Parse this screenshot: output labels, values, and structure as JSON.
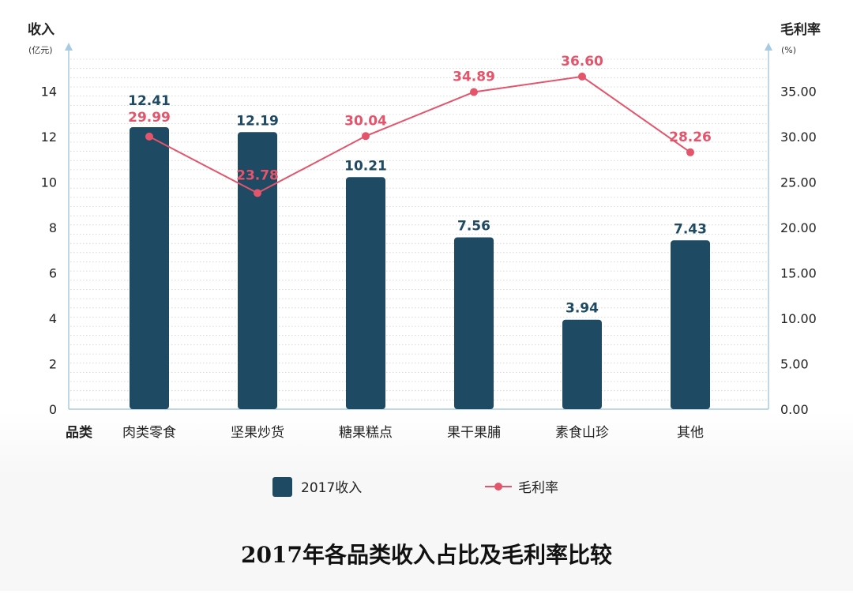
{
  "chart_data": {
    "type": "bar",
    "title": "2017年各品类收入占比及毛利率比较",
    "categories": [
      "肉类零食",
      "坚果炒货",
      "糖果糕点",
      "果干果脯",
      "素食山珍",
      "其他"
    ],
    "category_axis_label": "品类",
    "series": [
      {
        "name": "2017收入",
        "type": "bar",
        "axis": "left",
        "color": "#1e4a63",
        "values": [
          12.41,
          12.19,
          10.21,
          7.56,
          3.94,
          7.43
        ],
        "labels": [
          "12.41",
          "12.19",
          "10.21",
          "7.56",
          "3.94",
          "7.43"
        ]
      },
      {
        "name": "毛利率",
        "type": "line",
        "axis": "right",
        "color": "#e4546b",
        "values": [
          29.99,
          23.78,
          30.04,
          34.89,
          36.6,
          28.26
        ],
        "labels": [
          "29.99",
          "23.78",
          "30.04",
          "34.89",
          "36.60",
          "28.26"
        ]
      }
    ],
    "y_left": {
      "label": "收入",
      "unit": "(亿元)",
      "ylim": [
        0,
        15.4
      ],
      "ticks": [
        0,
        2,
        4,
        6,
        8,
        10,
        12,
        14
      ],
      "tick_labels": [
        "0",
        "2",
        "4",
        "6",
        "8",
        "10",
        "12",
        "14"
      ]
    },
    "y_right": {
      "label": "毛利率",
      "unit": "(%)",
      "ylim": [
        0,
        38.5
      ],
      "ticks": [
        0,
        5,
        10,
        15,
        20,
        25,
        30,
        35
      ],
      "tick_labels": [
        "0.00",
        "5.00",
        "10.00",
        "15.00",
        "20.00",
        "25.00",
        "30.00",
        "35.00"
      ]
    },
    "legend": {
      "position": "bottom-center",
      "entries": [
        "2017收入",
        "毛利率"
      ]
    },
    "grid": true
  }
}
